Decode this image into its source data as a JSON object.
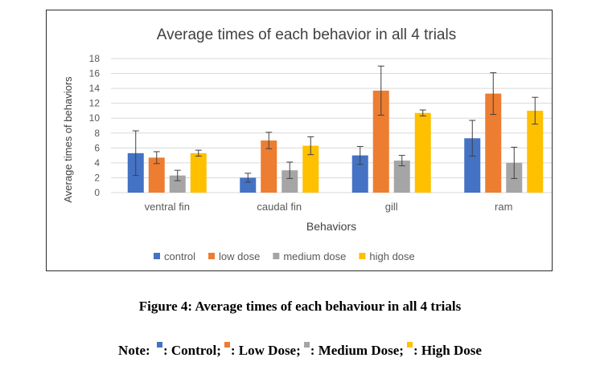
{
  "chart_data": {
    "type": "bar",
    "title": "Average times of each behavior in all 4 trials",
    "xlabel": "Behaviors",
    "ylabel": "Average times of behaviors",
    "ylim": [
      0,
      18
    ],
    "yticks": [
      0,
      2,
      4,
      6,
      8,
      10,
      12,
      14,
      16,
      18
    ],
    "grid": true,
    "legend_position": "bottom",
    "categories": [
      "ventral fin",
      "caudal fin",
      "gill",
      "ram"
    ],
    "series": [
      {
        "name": "control",
        "color": "#4472C4",
        "values": [
          5.3,
          2.0,
          5.0,
          7.3
        ],
        "errors": [
          3.0,
          0.6,
          1.2,
          2.4
        ]
      },
      {
        "name": "low dose",
        "color": "#ED7D31",
        "values": [
          4.7,
          7.0,
          13.7,
          13.3
        ],
        "errors": [
          0.8,
          1.1,
          3.3,
          2.8
        ]
      },
      {
        "name": "medium dose",
        "color": "#A5A5A5",
        "values": [
          2.3,
          3.0,
          4.3,
          4.0
        ],
        "errors": [
          0.7,
          1.1,
          0.7,
          2.1
        ]
      },
      {
        "name": "high dose",
        "color": "#FFC000",
        "values": [
          5.3,
          6.3,
          10.7,
          11.0
        ],
        "errors": [
          0.4,
          1.2,
          0.4,
          1.8
        ]
      }
    ]
  },
  "caption": "Figure 4: Average times of each behaviour in all 4 trials",
  "note": {
    "label": "Note:",
    "items": [
      {
        "text": ": Control;",
        "color": "#4472C4"
      },
      {
        "text": ": Low Dose;",
        "color": "#ED7D31"
      },
      {
        "text": ": Medium Dose;",
        "color": "#A5A5A5"
      },
      {
        "text": ": High Dose",
        "color": "#FFC000"
      }
    ]
  }
}
